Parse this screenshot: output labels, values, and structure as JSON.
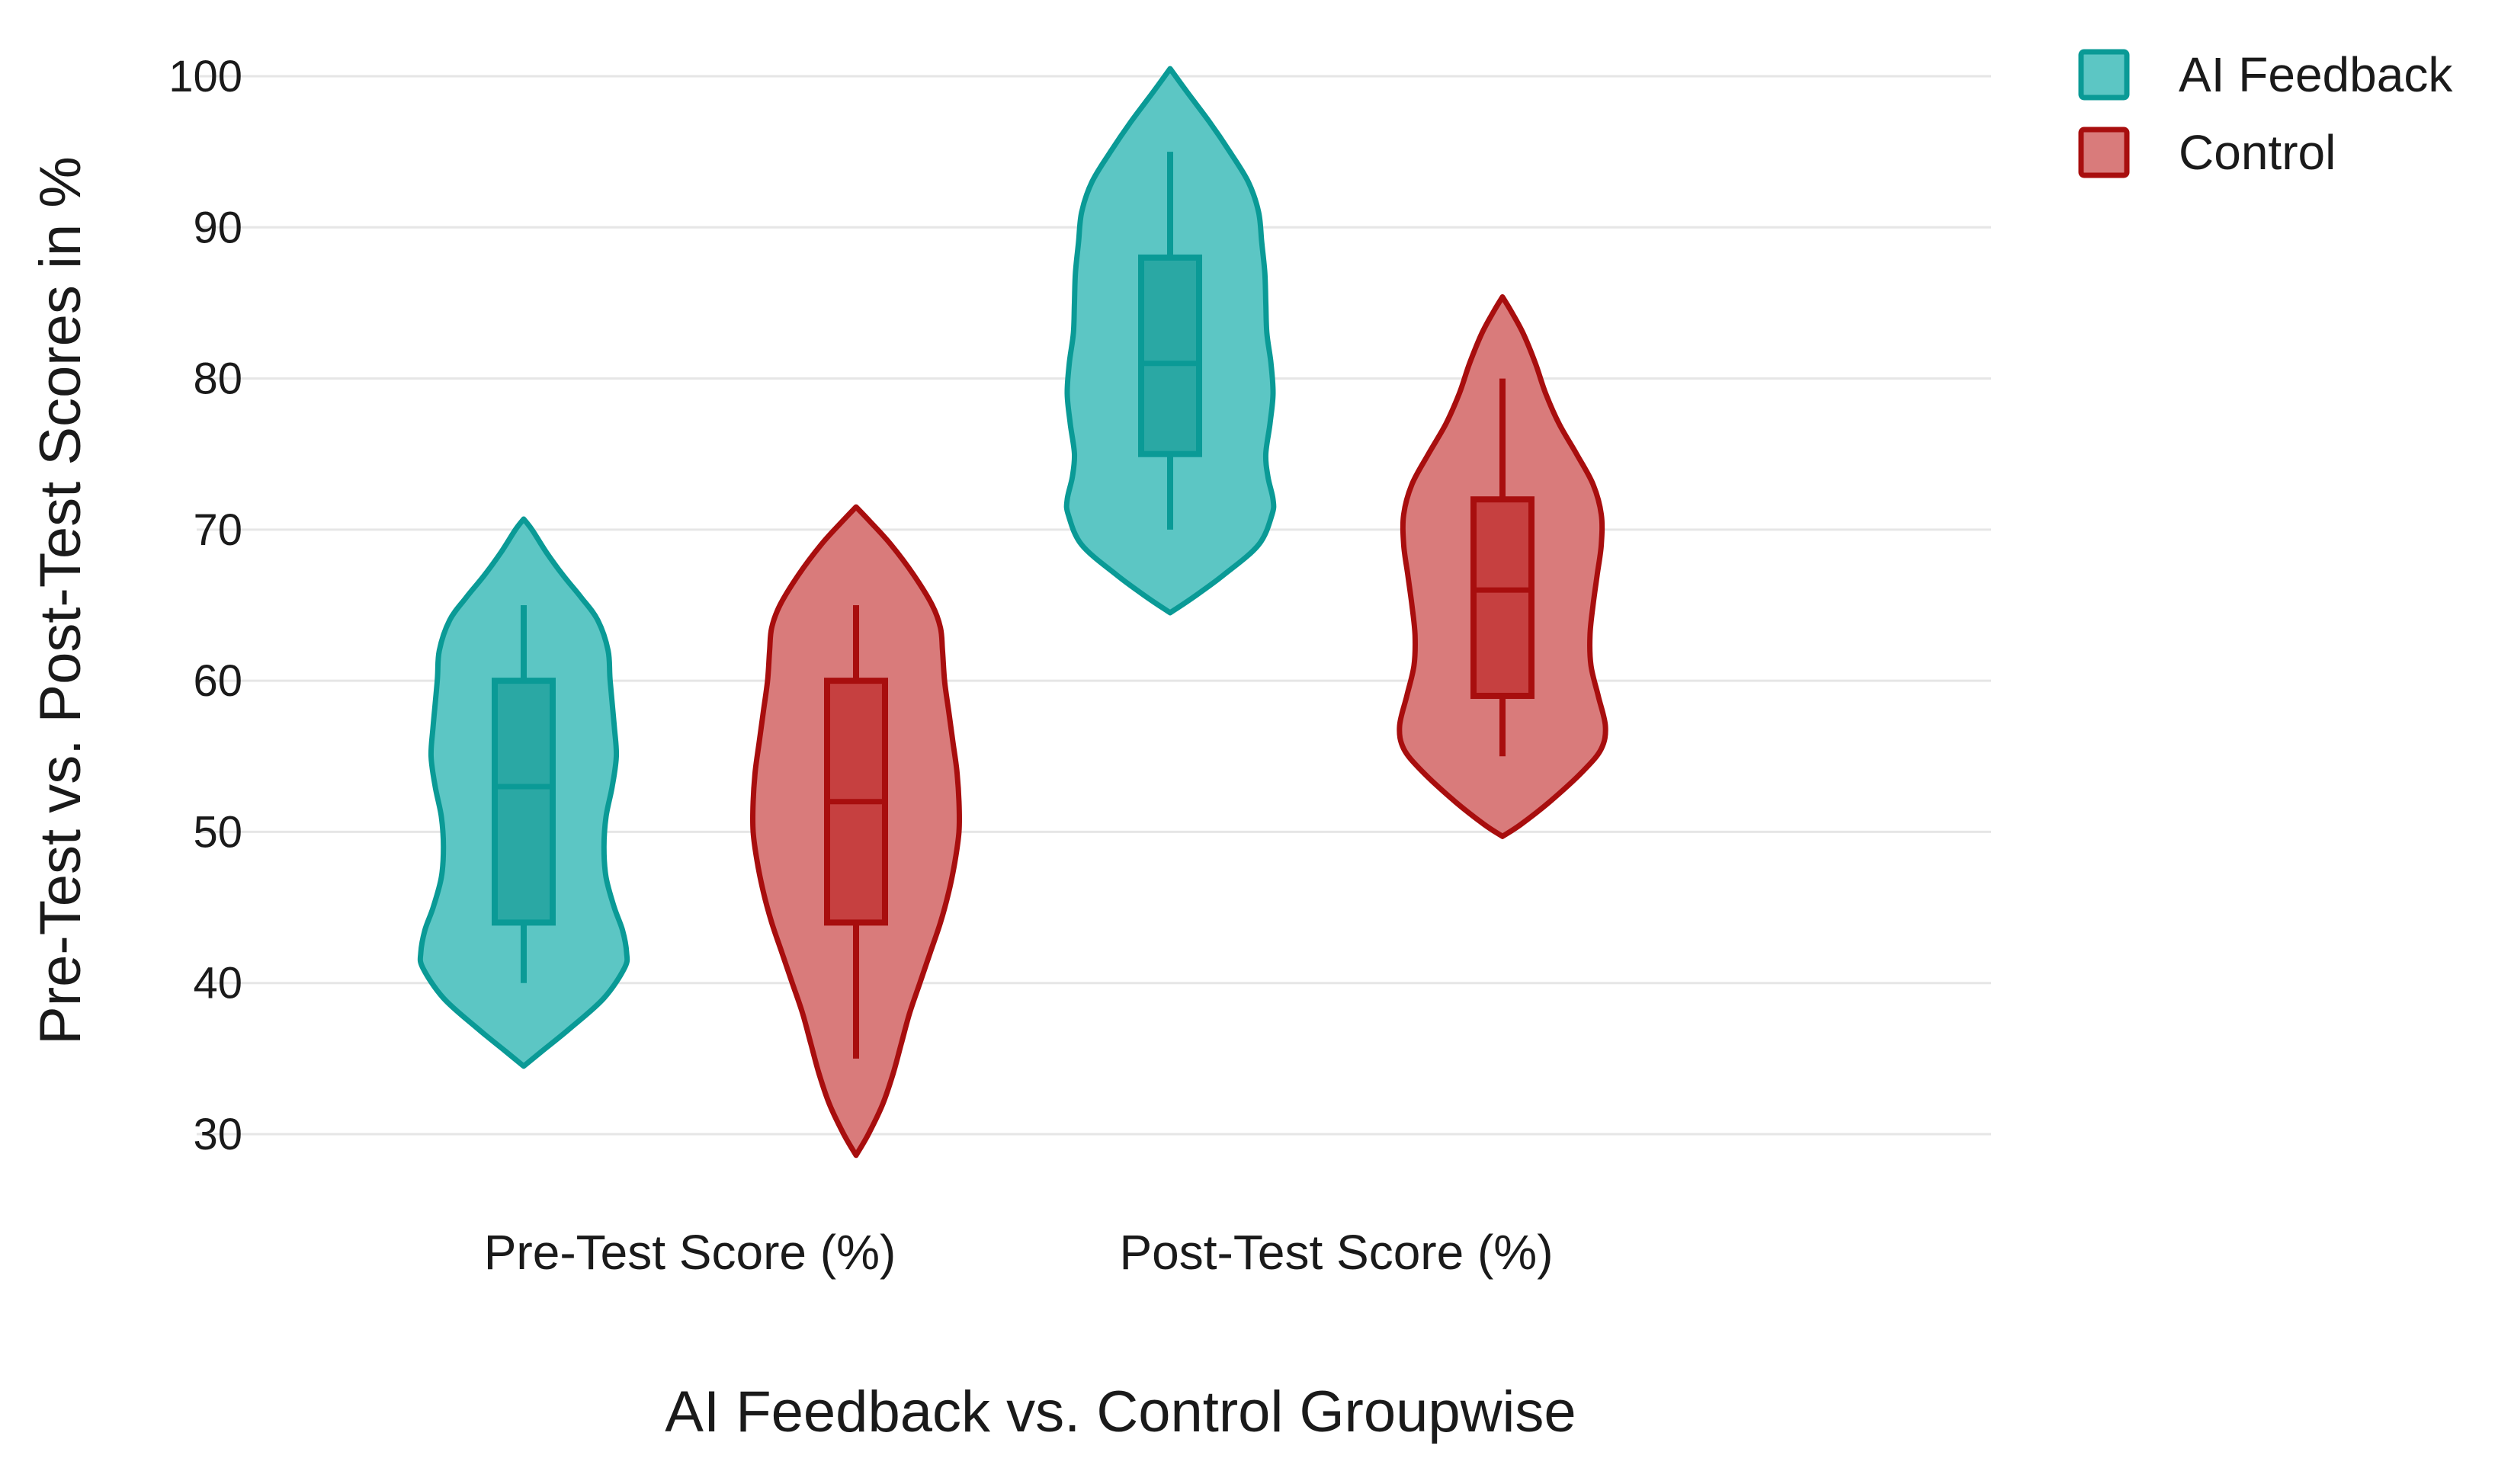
{
  "chart_data": {
    "type": "violin",
    "xlabel": "AI Feedback vs. Control Groupwise",
    "ylabel": "Pre-Test vs. Post-Test Scores in %",
    "ylim": [
      30,
      100
    ],
    "yticks": [
      30,
      40,
      50,
      60,
      70,
      80,
      90,
      100
    ],
    "categories": [
      "Pre-Test Score (%)",
      "Post-Test Score (%)"
    ],
    "grid": true,
    "legend_position": "top-right",
    "series": [
      {
        "name": "AI Feedback",
        "fill": "#5cc6c4",
        "stroke": "#0a9a96",
        "box_fill": "#2aa8a4",
        "stats": [
          {
            "category": "Pre-Test Score (%)",
            "min": 40,
            "q1": 44,
            "median": 53,
            "q3": 60,
            "max": 65,
            "violin_range": [
              34.5,
              70.7
            ],
            "density": [
              [
                34.5,
                0
              ],
              [
                35.5,
                0.18
              ],
              [
                37,
                0.45
              ],
              [
                39,
                0.78
              ],
              [
                41,
                0.98
              ],
              [
                42,
                1.0
              ],
              [
                43.5,
                0.96
              ],
              [
                45,
                0.88
              ],
              [
                47,
                0.8
              ],
              [
                49,
                0.78
              ],
              [
                51,
                0.8
              ],
              [
                53,
                0.86
              ],
              [
                55,
                0.9
              ],
              [
                57,
                0.88
              ],
              [
                60,
                0.84
              ],
              [
                62,
                0.82
              ],
              [
                64,
                0.72
              ],
              [
                65.5,
                0.56
              ],
              [
                67,
                0.38
              ],
              [
                68.5,
                0.22
              ],
              [
                70,
                0.08
              ],
              [
                70.7,
                0
              ]
            ]
          },
          {
            "category": "Post-Test Score (%)",
            "min": 70,
            "q1": 75,
            "median": 81,
            "q3": 88,
            "max": 95,
            "violin_range": [
              64.5,
              100.5
            ],
            "density": [
              [
                64.5,
                0
              ],
              [
                65.5,
                0.22
              ],
              [
                67,
                0.52
              ],
              [
                69,
                0.86
              ],
              [
                71,
                0.99
              ],
              [
                72,
                1.0
              ],
              [
                73.5,
                0.95
              ],
              [
                75,
                0.93
              ],
              [
                77,
                0.97
              ],
              [
                79,
                1.0
              ],
              [
                81,
                0.98
              ],
              [
                83,
                0.94
              ],
              [
                85,
                0.93
              ],
              [
                87,
                0.92
              ],
              [
                89,
                0.89
              ],
              [
                91,
                0.86
              ],
              [
                93,
                0.76
              ],
              [
                95,
                0.58
              ],
              [
                97,
                0.38
              ],
              [
                99,
                0.16
              ],
              [
                100.5,
                0
              ]
            ]
          }
        ]
      },
      {
        "name": "Control",
        "fill": "#d97b7b",
        "stroke": "#a80e0e",
        "box_fill": "#c64040",
        "stats": [
          {
            "category": "Pre-Test Score (%)",
            "min": 35,
            "q1": 44,
            "median": 52,
            "q3": 60,
            "max": 65,
            "violin_range": [
              28.6,
              71.5
            ],
            "density": [
              [
                28.6,
                0
              ],
              [
                30,
                0.12
              ],
              [
                32,
                0.26
              ],
              [
                34,
                0.36
              ],
              [
                36,
                0.44
              ],
              [
                38,
                0.52
              ],
              [
                40,
                0.62
              ],
              [
                42,
                0.72
              ],
              [
                44,
                0.82
              ],
              [
                46,
                0.9
              ],
              [
                48,
                0.96
              ],
              [
                50,
                1.0
              ],
              [
                52,
                1.0
              ],
              [
                54,
                0.98
              ],
              [
                56,
                0.94
              ],
              [
                58,
                0.9
              ],
              [
                60,
                0.86
              ],
              [
                62,
                0.84
              ],
              [
                63.5,
                0.82
              ],
              [
                65,
                0.74
              ],
              [
                67,
                0.56
              ],
              [
                69,
                0.34
              ],
              [
                70.5,
                0.14
              ],
              [
                71.5,
                0
              ]
            ]
          },
          {
            "category": "Post-Test Score (%)",
            "min": 55,
            "q1": 59,
            "median": 66,
            "q3": 72,
            "max": 80,
            "violin_range": [
              49.7,
              85.4
            ],
            "density": [
              [
                49.7,
                0
              ],
              [
                50.5,
                0.18
              ],
              [
                52,
                0.46
              ],
              [
                54,
                0.78
              ],
              [
                55.5,
                0.96
              ],
              [
                57,
                1.0
              ],
              [
                59,
                0.93
              ],
              [
                61,
                0.86
              ],
              [
                63,
                0.85
              ],
              [
                65,
                0.88
              ],
              [
                67,
                0.92
              ],
              [
                69,
                0.96
              ],
              [
                71,
                0.96
              ],
              [
                73,
                0.88
              ],
              [
                75,
                0.72
              ],
              [
                77,
                0.55
              ],
              [
                79,
                0.42
              ],
              [
                81,
                0.32
              ],
              [
                83,
                0.2
              ],
              [
                84.5,
                0.08
              ],
              [
                85.4,
                0
              ]
            ]
          }
        ]
      }
    ]
  }
}
